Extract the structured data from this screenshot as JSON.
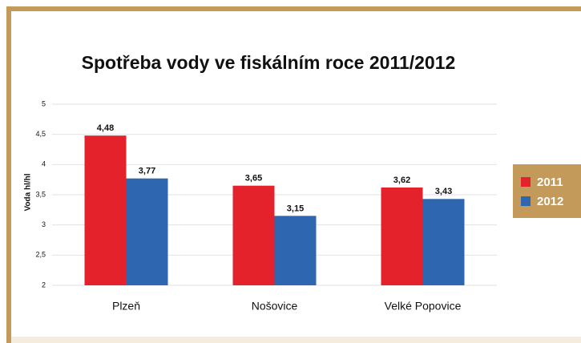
{
  "chart_data": {
    "type": "bar",
    "title": "Spotřeba vody ve fiskálním roce 2011/2012",
    "y_label": "Voda hl/hl",
    "categories": [
      "Plzeň",
      "Nošovice",
      "Velké Popovice"
    ],
    "series": [
      {
        "name": "2011",
        "color": "#e3222b",
        "values": [
          4.48,
          3.65,
          3.62
        ],
        "value_labels": [
          "4,48",
          "3,65",
          "3,62"
        ]
      },
      {
        "name": "2012",
        "color": "#2f66b0",
        "values": [
          3.77,
          3.15,
          3.43
        ],
        "value_labels": [
          "3,77",
          "3,15",
          "3,43"
        ]
      }
    ],
    "ylim": [
      2,
      5
    ],
    "yticks": [
      2,
      {
        "value": 2.5,
        "label": "2,5"
      },
      3,
      {
        "value": 3.5,
        "label": "3,5"
      },
      4,
      {
        "value": 4.5,
        "label": "4,5"
      },
      5
    ],
    "grid": true,
    "legend": "right"
  }
}
